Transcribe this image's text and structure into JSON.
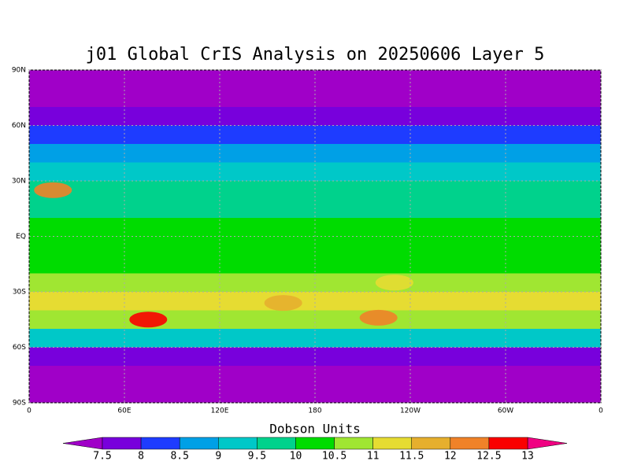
{
  "chart_data": {
    "type": "contour-map",
    "title": "j01 Global CrIS Analysis on 20250606 Layer 5",
    "colorbar_label": "Dobson Units",
    "xlim": [
      0,
      360
    ],
    "ylim": [
      -90,
      90
    ],
    "xticks": [
      {
        "value": 0,
        "label": "0"
      },
      {
        "value": 60,
        "label": "60E"
      },
      {
        "value": 120,
        "label": "120E"
      },
      180,
      {
        "value": 240,
        "label": "120W"
      },
      {
        "value": 300,
        "label": "60W"
      },
      {
        "value": 360,
        "label": "0"
      }
    ],
    "yticks": [
      {
        "value": -90,
        "label": "90S"
      },
      {
        "value": -60,
        "label": "60S"
      },
      {
        "value": -30,
        "label": "30S"
      },
      {
        "value": 0,
        "label": "EQ"
      },
      {
        "value": 30,
        "label": "30N"
      },
      {
        "value": 60,
        "label": "60N"
      },
      {
        "value": 90,
        "label": "90N"
      }
    ],
    "grid": true,
    "levels": [
      7.5,
      8,
      8.5,
      9,
      9.5,
      10,
      10.5,
      11,
      11.5,
      12,
      12.5,
      13
    ],
    "colors": [
      "#a000c8",
      "#7800dc",
      "#1e3cff",
      "#00a0e6",
      "#00c8c8",
      "#00d28c",
      "#00dc00",
      "#a0e632",
      "#e6dc32",
      "#e6af2d",
      "#f08228",
      "#fa0000",
      "#f00082"
    ],
    "zonal_field": {
      "lat": [
        85,
        75,
        65,
        55,
        45,
        35,
        25,
        15,
        5,
        -5,
        -15,
        -25,
        -35,
        -45,
        -55,
        -65,
        -75,
        -85
      ],
      "values": [
        7.4,
        7.4,
        7.6,
        8.2,
        8.7,
        9.3,
        9.6,
        9.8,
        10.2,
        10.3,
        10.2,
        10.6,
        11.0,
        10.8,
        9.0,
        7.8,
        7.4,
        7.4
      ]
    },
    "hotspots": [
      {
        "lon": 75,
        "lat": -45,
        "value": 12.5
      },
      {
        "lon": 220,
        "lat": -44,
        "value": 12.0
      },
      {
        "lon": 15,
        "lat": 25,
        "value": 12.0
      },
      {
        "lon": 160,
        "lat": -36,
        "value": 11.5
      },
      {
        "lon": 230,
        "lat": -25,
        "value": 11.0
      }
    ]
  }
}
